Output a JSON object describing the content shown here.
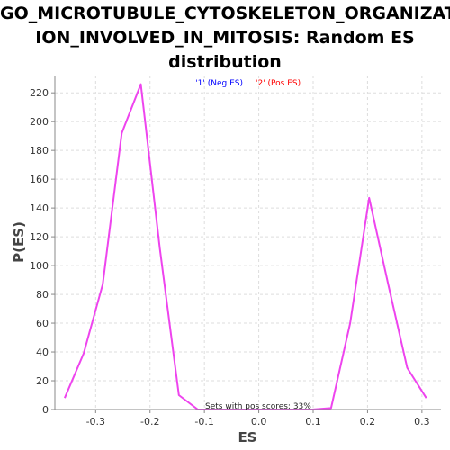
{
  "chart_data": {
    "type": "line",
    "title_lines": [
      "GO_MICROTUBULE_CYTOSKELETON_ORGANIZAT",
      "ION_INVOLVED_IN_MITOSIS: Random ES",
      "distribution"
    ],
    "xlabel": "ES",
    "ylabel": "P(ES)",
    "xlim": [
      -0.375,
      0.335
    ],
    "ylim": [
      0,
      232
    ],
    "x_ticks": [
      -0.3,
      -0.2,
      -0.1,
      0.0,
      0.1,
      0.2,
      0.3
    ],
    "x_tick_labels": [
      "-0.3",
      "-0.2",
      "-0.1",
      "0.0",
      "0.1",
      "0.2",
      "0.3"
    ],
    "y_ticks": [
      0,
      20,
      40,
      60,
      80,
      100,
      120,
      140,
      160,
      180,
      200,
      220
    ],
    "y_tick_labels": [
      "0",
      "20",
      "40",
      "60",
      "80",
      "100",
      "120",
      "140",
      "160",
      "180",
      "200",
      "220"
    ],
    "grid": true,
    "legend_position": "top-center",
    "legend": [
      {
        "label": "'1' (Neg ES)",
        "color": "#0000ff"
      },
      {
        "label": "'2' (Pos ES)",
        "color": "#ff0000"
      }
    ],
    "annotation": "Sets with pos scores: 33%",
    "line_color": "#ee44ee",
    "series": [
      {
        "x": [
          -0.357,
          -0.322,
          -0.287,
          -0.252,
          -0.217,
          -0.182,
          -0.147,
          -0.112,
          -0.077,
          -0.042,
          -0.007,
          0.028,
          0.063,
          0.098,
          0.133,
          0.168,
          0.203,
          0.238,
          0.273,
          0.308
        ],
        "y": [
          8,
          39,
          87,
          192,
          226,
          112,
          10,
          0,
          0,
          0,
          0,
          0,
          0,
          0,
          1,
          60,
          147,
          87,
          29,
          8
        ]
      }
    ]
  }
}
